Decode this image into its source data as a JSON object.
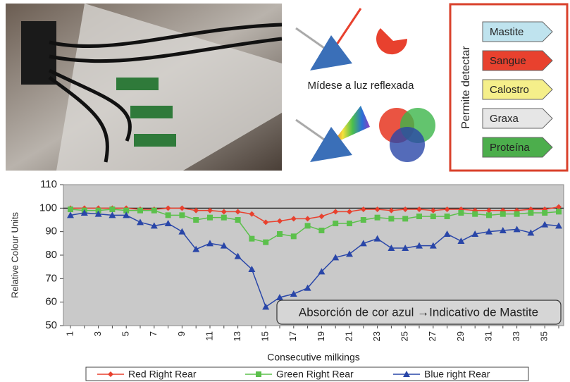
{
  "diagram": {
    "caption": "Mídese a luz reflexada"
  },
  "detect_panel": {
    "title": "Permite detectar",
    "items": [
      {
        "label": "Mastite",
        "color": "#bfe3ee"
      },
      {
        "label": "Sangue",
        "color": "#e8412e"
      },
      {
        "label": "Calostro",
        "color": "#f5ef8a"
      },
      {
        "label": "Graxa",
        "color": "#e6e6e6"
      },
      {
        "label": "Proteína",
        "color": "#4cae4c"
      }
    ]
  },
  "chart_data": {
    "type": "line",
    "ylabel": "Relative Colour Units",
    "xlabel": "Consecutive milkings",
    "annotation": "Absorción de cor azul →Indicativo de Mastite",
    "categories": [
      "1",
      null,
      "3",
      null,
      "5",
      null,
      "7",
      null,
      "9",
      null,
      "11",
      null,
      "13",
      null,
      "15",
      null,
      "17",
      null,
      "19",
      null,
      "21",
      null,
      "23",
      null,
      "25",
      null,
      "27",
      null,
      "29",
      null,
      "31",
      null,
      "33",
      null,
      "35",
      null
    ],
    "ylim": [
      50,
      110
    ],
    "yticks": [
      50,
      60,
      70,
      80,
      90,
      100,
      110
    ],
    "reference_line": 100,
    "legend": "bottom",
    "series": [
      {
        "name": "Red Right Rear",
        "color": "#e8412e",
        "marker": "diamond",
        "values": [
          100,
          100,
          100,
          100,
          100,
          99.5,
          99.5,
          100,
          100,
          99,
          99,
          98.5,
          98.5,
          97.5,
          94,
          94.5,
          95.5,
          95.5,
          96.5,
          98.5,
          98.5,
          99.5,
          99.5,
          99,
          99.5,
          99.5,
          99,
          99.5,
          99.5,
          99,
          99,
          99,
          99,
          99.5,
          99.5,
          100.5
        ]
      },
      {
        "name": "Green Right Rear",
        "color": "#5cc04c",
        "marker": "square",
        "values": [
          99.5,
          99,
          99,
          99.5,
          99,
          99,
          99,
          97,
          97,
          95,
          96,
          96,
          95,
          87,
          85.5,
          89,
          88,
          92.5,
          90.5,
          93.5,
          93.5,
          95,
          96,
          95.5,
          95.5,
          96.5,
          96.5,
          96.5,
          98,
          97.5,
          97,
          97.5,
          97.5,
          98,
          98,
          98.5
        ]
      },
      {
        "name": "Blue right Rear",
        "color": "#2946a8",
        "marker": "triangle",
        "values": [
          97,
          98,
          97.5,
          97,
          97,
          94,
          92.5,
          93.5,
          90,
          82.5,
          85,
          84,
          79.5,
          74,
          58,
          62,
          63.5,
          66,
          73,
          79,
          80.5,
          85,
          87,
          83,
          83,
          84,
          84,
          89,
          86,
          89,
          90,
          90.5,
          91,
          89.5,
          93,
          92.5
        ]
      }
    ]
  }
}
